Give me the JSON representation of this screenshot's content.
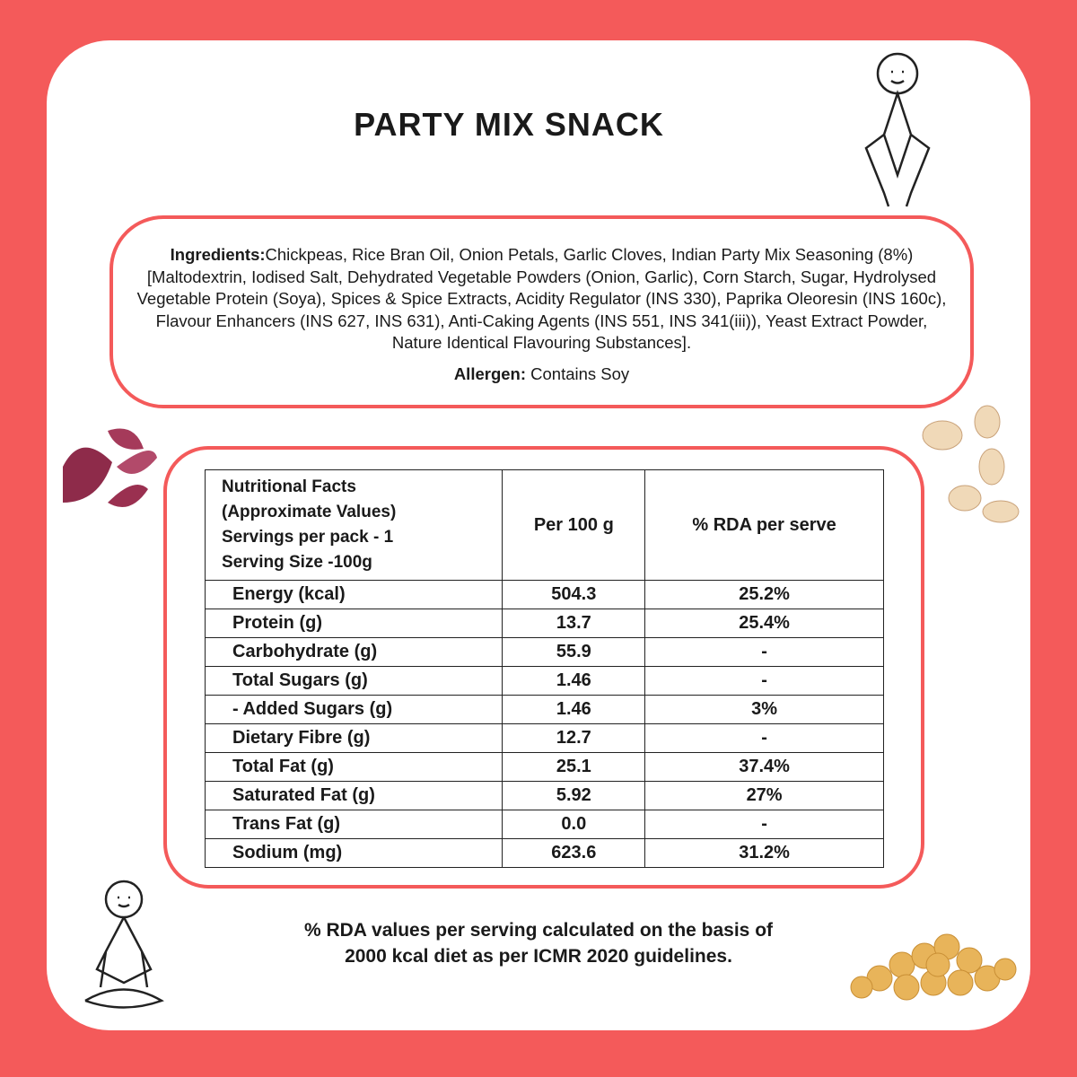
{
  "title": "PARTY MIX SNACK",
  "ingredients": {
    "label": "Ingredients:",
    "text": "Chickpeas, Rice Bran Oil, Onion Petals, Garlic Cloves, Indian Party Mix Seasoning (8%) [Maltodextrin, Iodised Salt, Dehydrated Vegetable Powders (Onion, Garlic), Corn Starch, Sugar, Hydrolysed Vegetable Protein (Soya), Spices & Spice Extracts, Acidity Regulator (INS 330), Paprika Oleoresin (INS 160c), Flavour Enhancers (INS 627, INS 631), Anti-Caking Agents (INS 551, INS 341(iii)), Yeast Extract Powder, Nature Identical Flavouring Substances]."
  },
  "allergen": {
    "label": "Allergen:",
    "text": "Contains Soy"
  },
  "table": {
    "header": [
      [
        "Nutritional Facts",
        "(Approximate Values)",
        "Servings per pack - 1",
        "Serving Size -100g"
      ],
      "Per 100 g",
      "% RDA per serve"
    ],
    "rows": [
      [
        "Energy (kcal)",
        "504.3",
        "25.2%"
      ],
      [
        "Protein (g)",
        "13.7",
        "25.4%"
      ],
      [
        "Carbohydrate (g)",
        "55.9",
        "-"
      ],
      [
        "Total Sugars (g)",
        "1.46",
        "-"
      ],
      [
        "- Added Sugars (g)",
        "1.46",
        "3%"
      ],
      [
        "Dietary Fibre (g)",
        "12.7",
        "-"
      ],
      [
        "Total Fat (g)",
        "25.1",
        "37.4%"
      ],
      [
        "Saturated Fat (g)",
        "5.92",
        "27%"
      ],
      [
        "Trans Fat (g)",
        "0.0",
        "-"
      ],
      [
        "Sodium (mg)",
        "623.6",
        "31.2%"
      ]
    ]
  },
  "footnote": [
    "% RDA values per serving calculated on the basis of",
    "2000 kcal diet as per ICMR 2020 guidelines."
  ]
}
